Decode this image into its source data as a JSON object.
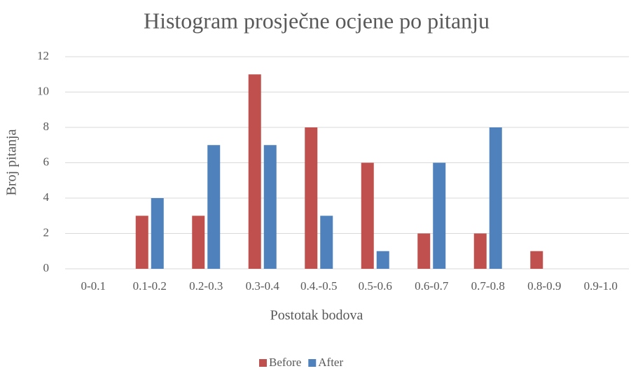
{
  "chart_data": {
    "type": "bar",
    "title": "Histogram prosječne ocjene po pitanju",
    "x_label": "Postotak bodova",
    "y_label": "Broj pitanja",
    "categories": [
      "0-0.1",
      "0.1-0.2",
      "0.2-0.3",
      "0.3-0.4",
      "0.4.-0.5",
      "0.5-0.6",
      "0.6-0.7",
      "0.7-0.8",
      "0.8-0.9",
      "0.9-1.0"
    ],
    "series": [
      {
        "name": "Before",
        "color": "#c0504d",
        "values": [
          0,
          3,
          3,
          11,
          8,
          6,
          2,
          2,
          1,
          0
        ]
      },
      {
        "name": "After",
        "color": "#4f81bd",
        "values": [
          0,
          4,
          7,
          7,
          3,
          1,
          6,
          8,
          0,
          0
        ]
      }
    ],
    "ylim": [
      0,
      12
    ],
    "yticks": [
      0,
      2,
      4,
      6,
      8,
      10,
      12
    ],
    "grid": true,
    "legend": "bottom"
  }
}
